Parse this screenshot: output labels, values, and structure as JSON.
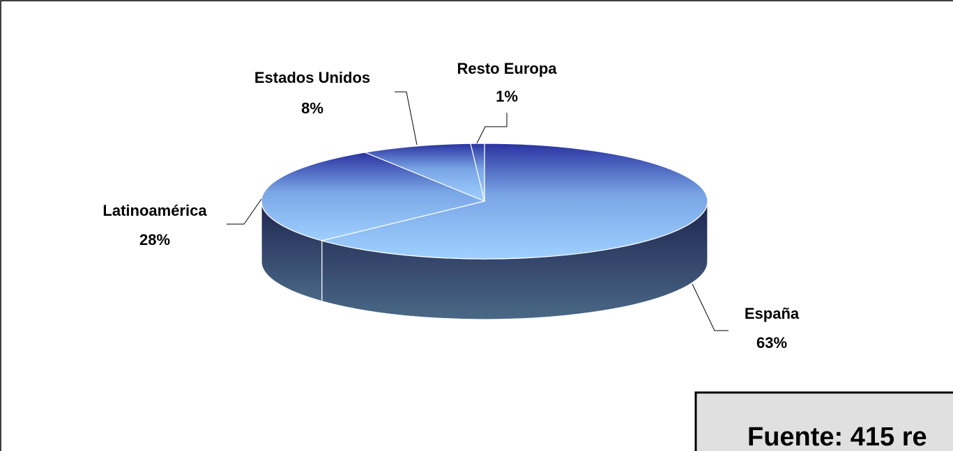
{
  "chart_data": {
    "type": "pie3d",
    "categories": [
      "España",
      "Latinoamérica",
      "Estados Unidos",
      "Resto Europa"
    ],
    "values": [
      63,
      28,
      8,
      1
    ],
    "value_labels": [
      "63%",
      "28%",
      "8%",
      "1%"
    ],
    "annotation": "Fuente: 415 re"
  }
}
